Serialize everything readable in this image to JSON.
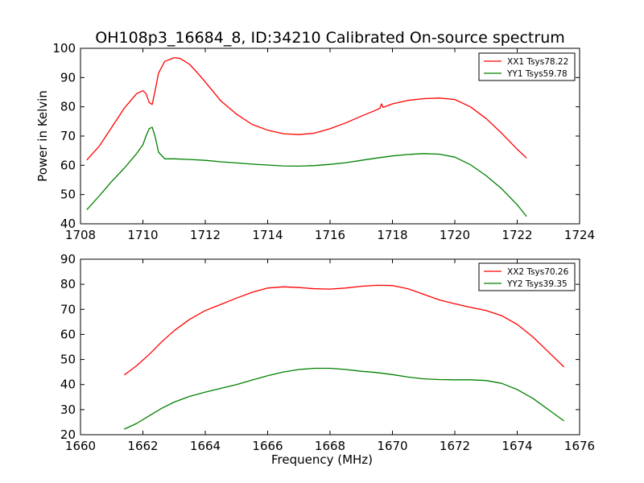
{
  "figure": {
    "title": "OH108p3_16684_8, ID:34210 Calibrated On-source spectrum"
  },
  "chart_data": [
    {
      "type": "line",
      "title": "OH108p3_16684_8, ID:34210 Calibrated On-source spectrum",
      "xlabel": "",
      "ylabel": "Power in Kelvin",
      "xlim": [
        1708,
        1724
      ],
      "ylim": [
        40,
        100
      ],
      "xticks": [
        1708,
        1710,
        1712,
        1714,
        1716,
        1718,
        1720,
        1722,
        1724
      ],
      "yticks": [
        40,
        50,
        60,
        70,
        80,
        90,
        100
      ],
      "grid": false,
      "legend_position": "top-right",
      "series": [
        {
          "name": "XX1 Tsys78.22",
          "color": "#ff0000",
          "x": [
            1708.2,
            1708.6,
            1709.0,
            1709.4,
            1709.8,
            1710.0,
            1710.1,
            1710.2,
            1710.3,
            1710.4,
            1710.5,
            1710.7,
            1711.0,
            1711.2,
            1711.5,
            1711.8,
            1712.0,
            1712.5,
            1713.0,
            1713.5,
            1714.0,
            1714.5,
            1715.0,
            1715.5,
            1716.0,
            1716.5,
            1717.0,
            1717.5,
            1717.6,
            1717.65,
            1717.7,
            1718.0,
            1718.5,
            1719.0,
            1719.5,
            1720.0,
            1720.5,
            1721.0,
            1721.5,
            1722.0,
            1722.3
          ],
          "y": [
            61.8,
            66.5,
            73.0,
            79.5,
            84.5,
            85.5,
            84.5,
            81.5,
            80.8,
            86.0,
            91.5,
            95.5,
            96.8,
            96.5,
            94.5,
            91.0,
            88.5,
            82.0,
            77.5,
            74.0,
            72.0,
            70.8,
            70.5,
            71.0,
            72.5,
            74.5,
            76.8,
            79.0,
            79.5,
            81.0,
            79.8,
            81.0,
            82.2,
            82.8,
            83.0,
            82.5,
            80.0,
            76.0,
            71.0,
            65.5,
            62.5
          ]
        },
        {
          "name": "YY1 Tsys59.78",
          "color": "#008000",
          "x": [
            1708.2,
            1708.6,
            1709.0,
            1709.4,
            1709.8,
            1710.0,
            1710.1,
            1710.2,
            1710.3,
            1710.4,
            1710.5,
            1710.7,
            1711.0,
            1711.5,
            1712.0,
            1712.5,
            1713.0,
            1713.5,
            1714.0,
            1714.5,
            1715.0,
            1715.5,
            1716.0,
            1716.5,
            1717.0,
            1717.5,
            1718.0,
            1718.5,
            1719.0,
            1719.5,
            1720.0,
            1720.5,
            1721.0,
            1721.5,
            1722.0,
            1722.3
          ],
          "y": [
            44.8,
            49.5,
            54.5,
            59.0,
            64.0,
            67.0,
            70.0,
            72.5,
            73.0,
            69.5,
            64.5,
            62.2,
            62.2,
            62.0,
            61.7,
            61.2,
            60.8,
            60.4,
            60.1,
            59.8,
            59.7,
            59.9,
            60.3,
            60.9,
            61.7,
            62.5,
            63.2,
            63.7,
            64.0,
            63.8,
            62.8,
            60.2,
            56.5,
            52.0,
            46.5,
            42.5
          ]
        }
      ]
    },
    {
      "type": "line",
      "title": "",
      "xlabel": "Frequency (MHz)",
      "ylabel": "",
      "xlim": [
        1660,
        1676
      ],
      "ylim": [
        20,
        90
      ],
      "xticks": [
        1660,
        1662,
        1664,
        1666,
        1668,
        1670,
        1672,
        1674,
        1676
      ],
      "yticks": [
        20,
        30,
        40,
        50,
        60,
        70,
        80,
        90
      ],
      "grid": false,
      "legend_position": "top-right",
      "series": [
        {
          "name": "XX2 Tsys70.26",
          "color": "#ff0000",
          "x": [
            1661.4,
            1661.8,
            1662.2,
            1662.6,
            1663.0,
            1663.5,
            1664.0,
            1664.5,
            1665.0,
            1665.5,
            1666.0,
            1666.5,
            1667.0,
            1667.5,
            1668.0,
            1668.5,
            1669.0,
            1669.5,
            1670.0,
            1670.5,
            1671.0,
            1671.5,
            1672.0,
            1672.5,
            1673.0,
            1673.5,
            1674.0,
            1674.5,
            1675.0,
            1675.5
          ],
          "y": [
            43.8,
            47.5,
            52.0,
            57.0,
            61.5,
            66.0,
            69.5,
            72.0,
            74.5,
            76.8,
            78.5,
            79.0,
            78.7,
            78.2,
            78.1,
            78.5,
            79.2,
            79.6,
            79.5,
            78.2,
            76.0,
            73.8,
            72.2,
            70.8,
            69.5,
            67.5,
            64.0,
            59.0,
            53.0,
            47.0
          ]
        },
        {
          "name": "YY2 Tsys39.35",
          "color": "#008000",
          "x": [
            1661.4,
            1661.8,
            1662.2,
            1662.6,
            1663.0,
            1663.5,
            1664.0,
            1664.5,
            1665.0,
            1665.5,
            1666.0,
            1666.5,
            1667.0,
            1667.5,
            1668.0,
            1668.5,
            1669.0,
            1669.5,
            1670.0,
            1670.5,
            1671.0,
            1671.5,
            1672.0,
            1672.5,
            1673.0,
            1673.5,
            1674.0,
            1674.5,
            1675.0,
            1675.5
          ],
          "y": [
            22.2,
            24.5,
            27.5,
            30.5,
            33.0,
            35.3,
            37.0,
            38.5,
            40.0,
            41.8,
            43.5,
            45.0,
            46.0,
            46.5,
            46.5,
            46.0,
            45.3,
            44.8,
            44.0,
            43.0,
            42.3,
            42.0,
            41.9,
            41.9,
            41.6,
            40.5,
            38.0,
            34.5,
            30.0,
            25.5
          ]
        }
      ]
    }
  ]
}
